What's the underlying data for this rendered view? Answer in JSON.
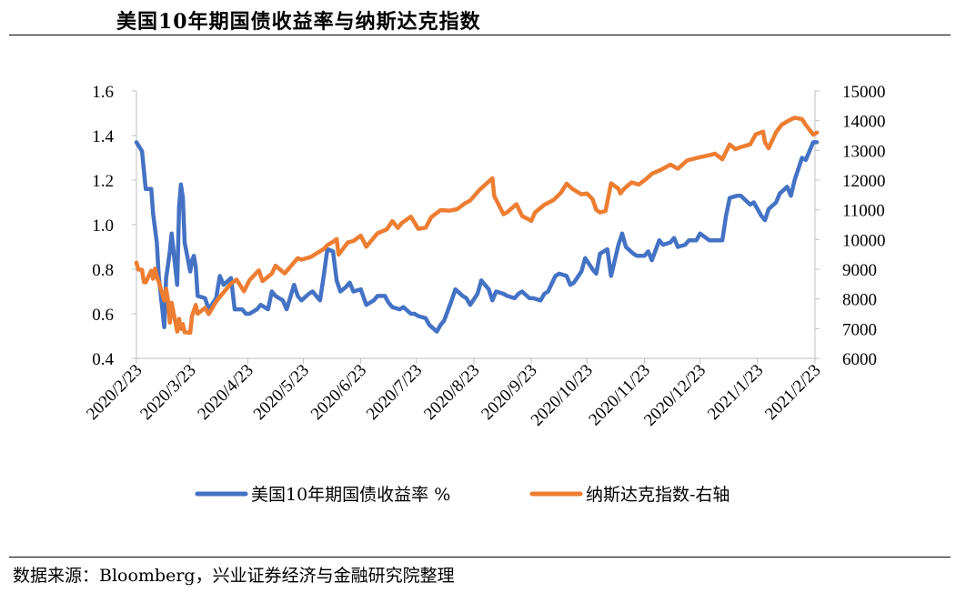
{
  "title": "美国10年期国债收益率与纳斯达克指数",
  "source": "数据来源：Bloomberg，兴业证券经济与金融研究院整理",
  "chart_data": {
    "type": "line",
    "x_tick_labels": [
      "2020/2/23",
      "2020/3/23",
      "2020/4/23",
      "2020/5/23",
      "2020/6/23",
      "2020/7/23",
      "2020/8/23",
      "2020/9/23",
      "2020/10/23",
      "2020/11/23",
      "2020/12/23",
      "2021/1/23",
      "2021/2/23"
    ],
    "y_left": {
      "ylim": [
        0.4,
        1.6
      ],
      "ticks": [
        "0.4",
        "0.6",
        "0.8",
        "1.0",
        "1.2",
        "1.4",
        "1.6"
      ]
    },
    "y_right": {
      "ylim": [
        6000,
        15000
      ],
      "ticks": [
        "6000",
        "7000",
        "8000",
        "9000",
        "10000",
        "11000",
        "12000",
        "13000",
        "14000",
        "15000"
      ]
    },
    "legend_position": "bottom",
    "series": [
      {
        "name": "美国10年期国债收益率 %",
        "axis": "left",
        "color": "#4472C4",
        "points": [
          [
            "2020/2/23",
            1.37
          ],
          [
            "2020/2/26",
            1.33
          ],
          [
            "2020/2/28",
            1.16
          ],
          [
            "2020/3/2",
            1.16
          ],
          [
            "2020/3/3",
            1.05
          ],
          [
            "2020/3/5",
            0.92
          ],
          [
            "2020/3/6",
            0.77
          ],
          [
            "2020/3/9",
            0.54
          ],
          [
            "2020/3/10",
            0.76
          ],
          [
            "2020/3/11",
            0.82
          ],
          [
            "2020/3/12",
            0.88
          ],
          [
            "2020/3/13",
            0.96
          ],
          [
            "2020/3/16",
            0.73
          ],
          [
            "2020/3/17",
            1.08
          ],
          [
            "2020/3/18",
            1.18
          ],
          [
            "2020/3/19",
            1.12
          ],
          [
            "2020/3/20",
            0.92
          ],
          [
            "2020/3/23",
            0.79
          ],
          [
            "2020/3/24",
            0.84
          ],
          [
            "2020/3/25",
            0.86
          ],
          [
            "2020/3/26",
            0.81
          ],
          [
            "2020/3/27",
            0.68
          ],
          [
            "2020/3/31",
            0.67
          ],
          [
            "2020/4/2",
            0.62
          ],
          [
            "2020/4/6",
            0.67
          ],
          [
            "2020/4/8",
            0.77
          ],
          [
            "2020/4/10",
            0.73
          ],
          [
            "2020/4/14",
            0.76
          ],
          [
            "2020/4/16",
            0.62
          ],
          [
            "2020/4/20",
            0.62
          ],
          [
            "2020/4/22",
            0.6
          ],
          [
            "2020/4/24",
            0.6
          ],
          [
            "2020/4/28",
            0.62
          ],
          [
            "2020/4/30",
            0.64
          ],
          [
            "2020/5/4",
            0.62
          ],
          [
            "2020/5/6",
            0.7
          ],
          [
            "2020/5/8",
            0.68
          ],
          [
            "2020/5/12",
            0.66
          ],
          [
            "2020/5/14",
            0.62
          ],
          [
            "2020/5/18",
            0.73
          ],
          [
            "2020/5/20",
            0.68
          ],
          [
            "2020/5/22",
            0.66
          ],
          [
            "2020/5/26",
            0.69
          ],
          [
            "2020/5/28",
            0.7
          ],
          [
            "2020/6/1",
            0.66
          ],
          [
            "2020/6/3",
            0.77
          ],
          [
            "2020/6/5",
            0.89
          ],
          [
            "2020/6/8",
            0.88
          ],
          [
            "2020/6/10",
            0.75
          ],
          [
            "2020/6/12",
            0.7
          ],
          [
            "2020/6/15",
            0.72
          ],
          [
            "2020/6/17",
            0.74
          ],
          [
            "2020/6/19",
            0.7
          ],
          [
            "2020/6/23",
            0.71
          ],
          [
            "2020/6/26",
            0.64
          ],
          [
            "2020/6/30",
            0.66
          ],
          [
            "2020/7/2",
            0.68
          ],
          [
            "2020/7/6",
            0.68
          ],
          [
            "2020/7/8",
            0.65
          ],
          [
            "2020/7/10",
            0.63
          ],
          [
            "2020/7/14",
            0.62
          ],
          [
            "2020/7/16",
            0.63
          ],
          [
            "2020/7/20",
            0.6
          ],
          [
            "2020/7/22",
            0.6
          ],
          [
            "2020/7/24",
            0.59
          ],
          [
            "2020/7/28",
            0.58
          ],
          [
            "2020/7/30",
            0.55
          ],
          [
            "2020/8/3",
            0.52
          ],
          [
            "2020/8/5",
            0.55
          ],
          [
            "2020/8/7",
            0.57
          ],
          [
            "2020/8/11",
            0.66
          ],
          [
            "2020/8/13",
            0.71
          ],
          [
            "2020/8/17",
            0.68
          ],
          [
            "2020/8/19",
            0.67
          ],
          [
            "2020/8/21",
            0.64
          ],
          [
            "2020/8/25",
            0.69
          ],
          [
            "2020/8/27",
            0.75
          ],
          [
            "2020/8/31",
            0.71
          ],
          [
            "2020/9/2",
            0.66
          ],
          [
            "2020/9/4",
            0.7
          ],
          [
            "2020/9/8",
            0.69
          ],
          [
            "2020/9/10",
            0.68
          ],
          [
            "2020/9/14",
            0.67
          ],
          [
            "2020/9/16",
            0.69
          ],
          [
            "2020/9/18",
            0.7
          ],
          [
            "2020/9/22",
            0.67
          ],
          [
            "2020/9/24",
            0.67
          ],
          [
            "2020/9/28",
            0.66
          ],
          [
            "2020/9/30",
            0.69
          ],
          [
            "2020/10/2",
            0.7
          ],
          [
            "2020/10/6",
            0.77
          ],
          [
            "2020/10/8",
            0.78
          ],
          [
            "2020/10/12",
            0.77
          ],
          [
            "2020/10/14",
            0.73
          ],
          [
            "2020/10/16",
            0.74
          ],
          [
            "2020/10/20",
            0.79
          ],
          [
            "2020/10/22",
            0.85
          ],
          [
            "2020/10/26",
            0.8
          ],
          [
            "2020/10/28",
            0.78
          ],
          [
            "2020/10/30",
            0.87
          ],
          [
            "2020/11/3",
            0.89
          ],
          [
            "2020/11/5",
            0.77
          ],
          [
            "2020/11/9",
            0.91
          ],
          [
            "2020/11/11",
            0.96
          ],
          [
            "2020/11/13",
            0.9
          ],
          [
            "2020/11/17",
            0.87
          ],
          [
            "2020/11/19",
            0.86
          ],
          [
            "2020/11/23",
            0.86
          ],
          [
            "2020/11/25",
            0.88
          ],
          [
            "2020/11/27",
            0.84
          ],
          [
            "2020/12/1",
            0.93
          ],
          [
            "2020/12/3",
            0.91
          ],
          [
            "2020/12/7",
            0.92
          ],
          [
            "2020/12/9",
            0.94
          ],
          [
            "2020/12/11",
            0.9
          ],
          [
            "2020/12/15",
            0.91
          ],
          [
            "2020/12/17",
            0.93
          ],
          [
            "2020/12/21",
            0.93
          ],
          [
            "2020/12/23",
            0.96
          ],
          [
            "2020/12/28",
            0.93
          ],
          [
            "2020/12/30",
            0.93
          ],
          [
            "2021/1/4",
            0.93
          ],
          [
            "2021/1/6",
            1.04
          ],
          [
            "2021/1/8",
            1.12
          ],
          [
            "2021/1/12",
            1.13
          ],
          [
            "2021/1/14",
            1.13
          ],
          [
            "2021/1/19",
            1.09
          ],
          [
            "2021/1/21",
            1.1
          ],
          [
            "2021/1/25",
            1.04
          ],
          [
            "2021/1/27",
            1.02
          ],
          [
            "2021/1/29",
            1.07
          ],
          [
            "2021/2/2",
            1.1
          ],
          [
            "2021/2/4",
            1.14
          ],
          [
            "2021/2/8",
            1.17
          ],
          [
            "2021/2/10",
            1.13
          ],
          [
            "2021/2/12",
            1.2
          ],
          [
            "2021/2/16",
            1.3
          ],
          [
            "2021/2/18",
            1.29
          ],
          [
            "2021/2/22",
            1.37
          ],
          [
            "2021/2/24",
            1.37
          ]
        ]
      },
      {
        "name": "纳斯达克指数-右轴",
        "axis": "right",
        "color": "#ED7D31",
        "points": [
          [
            "2020/2/23",
            9220
          ],
          [
            "2020/2/24",
            8990
          ],
          [
            "2020/2/26",
            8980
          ],
          [
            "2020/2/27",
            8570
          ],
          [
            "2020/2/28",
            8560
          ],
          [
            "2020/3/2",
            8950
          ],
          [
            "2020/3/3",
            8680
          ],
          [
            "2020/3/4",
            9020
          ],
          [
            "2020/3/5",
            8740
          ],
          [
            "2020/3/6",
            8580
          ],
          [
            "2020/3/9",
            7950
          ],
          [
            "2020/3/10",
            8340
          ],
          [
            "2020/3/11",
            7950
          ],
          [
            "2020/3/12",
            7200
          ],
          [
            "2020/3/13",
            7870
          ],
          [
            "2020/3/16",
            6900
          ],
          [
            "2020/3/17",
            7330
          ],
          [
            "2020/3/18",
            6990
          ],
          [
            "2020/3/19",
            7150
          ],
          [
            "2020/3/20",
            6880
          ],
          [
            "2020/3/23",
            6860
          ],
          [
            "2020/3/24",
            7420
          ],
          [
            "2020/3/26",
            7800
          ],
          [
            "2020/3/27",
            7500
          ],
          [
            "2020/3/31",
            7700
          ],
          [
            "2020/4/2",
            7490
          ],
          [
            "2020/4/6",
            7910
          ],
          [
            "2020/4/9",
            8150
          ],
          [
            "2020/4/14",
            8520
          ],
          [
            "2020/4/17",
            8650
          ],
          [
            "2020/4/21",
            8260
          ],
          [
            "2020/4/24",
            8630
          ],
          [
            "2020/4/29",
            8960
          ],
          [
            "2020/5/1",
            8600
          ],
          [
            "2020/5/6",
            8850
          ],
          [
            "2020/5/8",
            9120
          ],
          [
            "2020/5/13",
            8860
          ],
          [
            "2020/5/15",
            9010
          ],
          [
            "2020/5/20",
            9370
          ],
          [
            "2020/5/22",
            9320
          ],
          [
            "2020/5/27",
            9410
          ],
          [
            "2020/5/29",
            9490
          ],
          [
            "2020/6/3",
            9680
          ],
          [
            "2020/6/5",
            9810
          ],
          [
            "2020/6/8",
            9920
          ],
          [
            "2020/6/10",
            10020
          ],
          [
            "2020/6/11",
            9490
          ],
          [
            "2020/6/16",
            9900
          ],
          [
            "2020/6/19",
            9950
          ],
          [
            "2020/6/23",
            10130
          ],
          [
            "2020/6/26",
            9760
          ],
          [
            "2020/6/30",
            10060
          ],
          [
            "2020/7/2",
            10210
          ],
          [
            "2020/7/7",
            10340
          ],
          [
            "2020/7/10",
            10620
          ],
          [
            "2020/7/13",
            10390
          ],
          [
            "2020/7/15",
            10550
          ],
          [
            "2020/7/20",
            10770
          ],
          [
            "2020/7/24",
            10360
          ],
          [
            "2020/7/28",
            10400
          ],
          [
            "2020/7/31",
            10750
          ],
          [
            "2020/8/5",
            10990
          ],
          [
            "2020/8/10",
            10970
          ],
          [
            "2020/8/14",
            11020
          ],
          [
            "2020/8/18",
            11210
          ],
          [
            "2020/8/21",
            11310
          ],
          [
            "2020/8/26",
            11670
          ],
          [
            "2020/9/2",
            12060
          ],
          [
            "2020/9/3",
            11460
          ],
          [
            "2020/9/8",
            10850
          ],
          [
            "2020/9/10",
            10920
          ],
          [
            "2020/9/15",
            11190
          ],
          [
            "2020/9/18",
            10790
          ],
          [
            "2020/9/23",
            10630
          ],
          [
            "2020/9/25",
            10910
          ],
          [
            "2020/9/30",
            11170
          ],
          [
            "2020/10/5",
            11330
          ],
          [
            "2020/10/9",
            11580
          ],
          [
            "2020/10/12",
            11880
          ],
          [
            "2020/10/15",
            11710
          ],
          [
            "2020/10/20",
            11520
          ],
          [
            "2020/10/23",
            11550
          ],
          [
            "2020/10/26",
            11360
          ],
          [
            "2020/10/28",
            11000
          ],
          [
            "2020/10/30",
            10910
          ],
          [
            "2020/11/2",
            10960
          ],
          [
            "2020/11/5",
            11890
          ],
          [
            "2020/11/9",
            11710
          ],
          [
            "2020/11/10",
            11550
          ],
          [
            "2020/11/12",
            11710
          ],
          [
            "2020/11/16",
            11920
          ],
          [
            "2020/11/20",
            11850
          ],
          [
            "2020/11/24",
            12040
          ],
          [
            "2020/11/27",
            12210
          ],
          [
            "2020/12/2",
            12350
          ],
          [
            "2020/12/7",
            12520
          ],
          [
            "2020/12/11",
            12380
          ],
          [
            "2020/12/16",
            12660
          ],
          [
            "2020/12/21",
            12740
          ],
          [
            "2020/12/23",
            12770
          ],
          [
            "2020/12/29",
            12850
          ],
          [
            "2020/12/31",
            12890
          ],
          [
            "2021/1/4",
            12700
          ],
          [
            "2021/1/8",
            13200
          ],
          [
            "2021/1/11",
            13040
          ],
          [
            "2021/1/14",
            13110
          ],
          [
            "2021/1/19",
            13200
          ],
          [
            "2021/1/22",
            13540
          ],
          [
            "2021/1/26",
            13630
          ],
          [
            "2021/1/27",
            13270
          ],
          [
            "2021/1/29",
            13070
          ],
          [
            "2021/2/2",
            13610
          ],
          [
            "2021/2/5",
            13860
          ],
          [
            "2021/2/9",
            14010
          ],
          [
            "2021/2/12",
            14100
          ],
          [
            "2021/2/16",
            14050
          ],
          [
            "2021/2/18",
            13860
          ],
          [
            "2021/2/22",
            13530
          ],
          [
            "2021/2/24",
            13600
          ]
        ]
      }
    ]
  }
}
